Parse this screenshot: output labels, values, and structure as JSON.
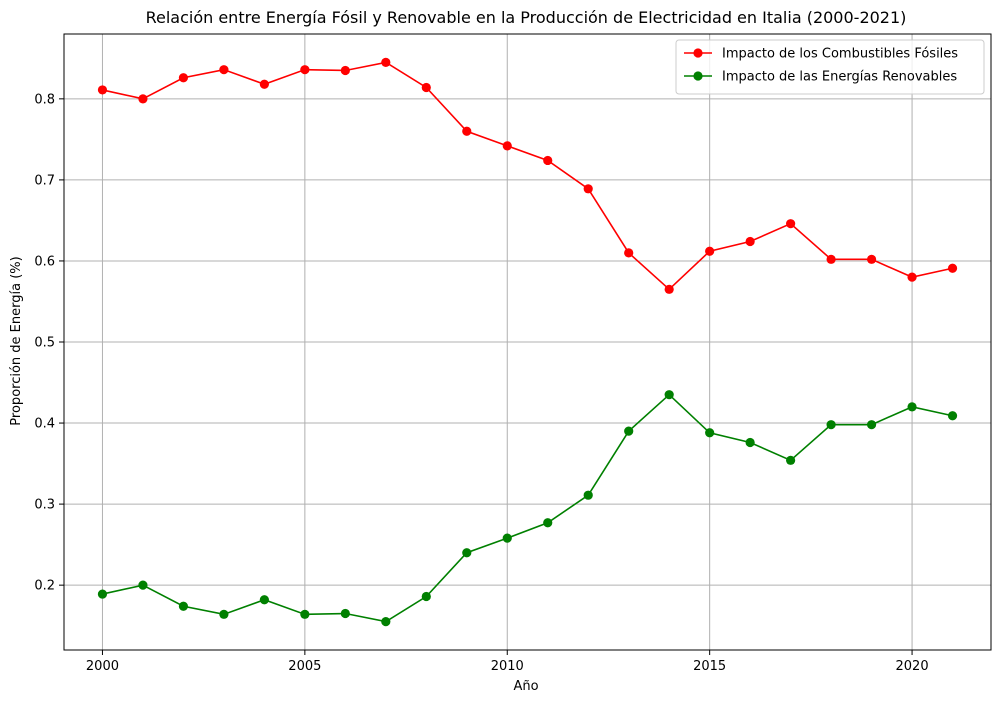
{
  "chart_data": {
    "type": "line",
    "title": "Relación entre Energía Fósil y Renovable en la Producción de Electricidad en Italia (2000-2021)",
    "xlabel": "Año",
    "ylabel": "Proporción de Energía (%)",
    "x": [
      2000,
      2001,
      2002,
      2003,
      2004,
      2005,
      2006,
      2007,
      2008,
      2009,
      2010,
      2011,
      2012,
      2013,
      2014,
      2015,
      2016,
      2017,
      2018,
      2019,
      2020,
      2021
    ],
    "xlim": [
      1999.05,
      2021.95
    ],
    "ylim": [
      0.12,
      0.88
    ],
    "xticks": [
      2000,
      2005,
      2010,
      2015,
      2020
    ],
    "yticks": [
      0.2,
      0.3,
      0.4,
      0.5,
      0.6,
      0.7,
      0.8
    ],
    "xtick_labels": [
      "2000",
      "2005",
      "2010",
      "2015",
      "2020"
    ],
    "ytick_labels": [
      "0.2",
      "0.3",
      "0.4",
      "0.5",
      "0.6",
      "0.7",
      "0.8"
    ],
    "grid": true,
    "legend_position": "top-right",
    "series": [
      {
        "name": "Impacto de los Combustibles Fósiles",
        "color": "#ff0000",
        "values": [
          0.811,
          0.8,
          0.826,
          0.836,
          0.818,
          0.836,
          0.835,
          0.845,
          0.814,
          0.76,
          0.742,
          0.724,
          0.689,
          0.61,
          0.565,
          0.612,
          0.624,
          0.646,
          0.602,
          0.602,
          0.58,
          0.591
        ]
      },
      {
        "name": "Impacto de las Energías Renovables",
        "color": "#008000",
        "values": [
          0.189,
          0.2,
          0.174,
          0.164,
          0.182,
          0.164,
          0.165,
          0.155,
          0.186,
          0.24,
          0.258,
          0.277,
          0.311,
          0.39,
          0.435,
          0.388,
          0.376,
          0.354,
          0.398,
          0.398,
          0.42,
          0.409
        ]
      }
    ]
  }
}
